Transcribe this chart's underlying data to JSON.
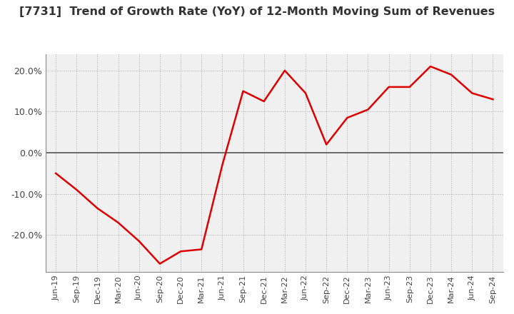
{
  "title": "[7731]  Trend of Growth Rate (YoY) of 12-Month Moving Sum of Revenues",
  "title_fontsize": 11.5,
  "line_color": "#dd0000",
  "background_color": "#ffffff",
  "plot_bg_color": "#f0f0f0",
  "grid_color": "#aaaaaa",
  "zero_line_color": "#555555",
  "ylim": [
    -29,
    24
  ],
  "yticks": [
    -20,
    -10,
    0,
    10,
    20
  ],
  "ytick_labels": [
    "-20.0%",
    "-10.0%",
    "0.0%",
    "10.0%",
    "20.0%"
  ],
  "x_labels": [
    "Jun-19",
    "Sep-19",
    "Dec-19",
    "Mar-20",
    "Jun-20",
    "Sep-20",
    "Dec-20",
    "Mar-21",
    "Jun-21",
    "Sep-21",
    "Dec-21",
    "Mar-22",
    "Jun-22",
    "Sep-22",
    "Dec-22",
    "Mar-23",
    "Jun-23",
    "Sep-23",
    "Dec-23",
    "Mar-24",
    "Jun-24",
    "Sep-24"
  ],
  "values": [
    -5.0,
    -9.0,
    -13.5,
    -17.0,
    -21.5,
    -27.0,
    -24.0,
    -23.5,
    -3.0,
    15.0,
    12.5,
    20.0,
    14.5,
    2.0,
    8.5,
    10.5,
    16.0,
    16.0,
    21.0,
    19.0,
    14.5,
    13.0
  ]
}
